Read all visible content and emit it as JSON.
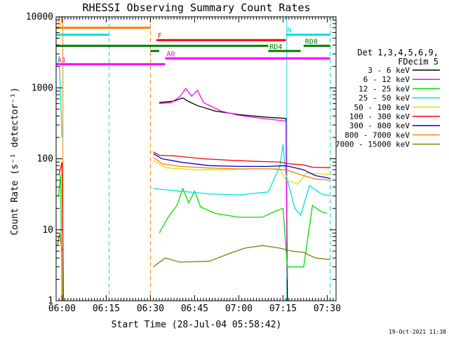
{
  "chart_data": {
    "type": "line",
    "title": "RHESSI Observing Summary Count Rates",
    "xlabel": "Start Time (28-Jul-04 05:58:42)",
    "ylabel": "Count Rate (s⁻¹ detector⁻¹)",
    "yscale": "log",
    "ylim": [
      1,
      10000
    ],
    "xlim_minutes": [
      -2,
      39
    ],
    "x_ticks": [
      {
        "m": 0,
        "label": "06:00"
      },
      {
        "m": 15,
        "label": "06:15"
      },
      {
        "m": 30,
        "label": "06:30"
      },
      {
        "m": 45,
        "label": "06:45"
      },
      {
        "m": 60,
        "label": "07:00"
      },
      {
        "m": 75,
        "label": "07:15"
      },
      {
        "m": 90,
        "label": "07:30"
      }
    ],
    "y_ticks": [
      {
        "v": 1,
        "label": "1"
      },
      {
        "v": 10,
        "label": "10"
      },
      {
        "v": 100,
        "label": "100"
      },
      {
        "v": 1000,
        "label": "1000"
      },
      {
        "v": 10000,
        "label": "10000"
      }
    ],
    "legend_header": [
      "Det 1,3,4,5,6,9,",
      "FDecim 5"
    ],
    "series": [
      {
        "name": "3 - 6 keV",
        "color": "#000000",
        "points": [
          [
            33,
            620
          ],
          [
            38,
            650
          ],
          [
            41,
            720
          ],
          [
            43,
            640
          ],
          [
            46,
            560
          ],
          [
            52,
            470
          ],
          [
            60,
            420
          ],
          [
            68,
            390
          ],
          [
            76,
            370
          ],
          [
            76.5,
            1
          ]
        ]
      },
      {
        "name": "6 - 12 keV",
        "color": "#ff00ff",
        "points": [
          [
            33,
            600
          ],
          [
            37,
            620
          ],
          [
            40,
            750
          ],
          [
            42,
            980
          ],
          [
            44,
            760
          ],
          [
            46,
            920
          ],
          [
            48,
            620
          ],
          [
            54,
            470
          ],
          [
            60,
            410
          ],
          [
            68,
            370
          ],
          [
            76,
            340
          ],
          [
            76.5,
            2
          ]
        ]
      },
      {
        "name": "12 - 25 keV",
        "color": "#00e000",
        "points": [
          [
            33,
            9
          ],
          [
            36,
            15
          ],
          [
            39,
            22
          ],
          [
            41,
            38
          ],
          [
            43,
            24
          ],
          [
            45,
            35
          ],
          [
            47,
            21
          ],
          [
            52,
            17
          ],
          [
            60,
            15
          ],
          [
            68,
            15
          ],
          [
            72,
            18
          ],
          [
            75,
            20
          ],
          [
            76.5,
            3
          ],
          [
            82,
            3
          ],
          [
            85,
            22
          ],
          [
            88,
            18
          ],
          [
            90,
            17
          ]
        ]
      },
      {
        "name": "25 - 50 keV",
        "color": "#00e0e0",
        "points": [
          [
            31,
            38
          ],
          [
            40,
            35
          ],
          [
            50,
            32
          ],
          [
            60,
            31
          ],
          [
            70,
            34
          ],
          [
            74,
            80
          ],
          [
            75,
            160
          ],
          [
            76,
            60
          ],
          [
            79,
            20
          ],
          [
            81,
            16
          ],
          [
            84,
            42
          ],
          [
            88,
            32
          ],
          [
            91,
            30
          ]
        ]
      },
      {
        "name": "50 - 100 keV",
        "color": "#e0e000",
        "points": [
          [
            31,
            95
          ],
          [
            35,
            75
          ],
          [
            45,
            70
          ],
          [
            55,
            70
          ],
          [
            65,
            72
          ],
          [
            74,
            72
          ],
          [
            76,
            50
          ],
          [
            80,
            44
          ],
          [
            83,
            63
          ],
          [
            86,
            62
          ],
          [
            91,
            60
          ]
        ]
      },
      {
        "name": "100 - 300 keV",
        "color": "#ff0000",
        "points": [
          [
            31,
            125
          ],
          [
            33,
            112
          ],
          [
            38,
            110
          ],
          [
            48,
            100
          ],
          [
            58,
            95
          ],
          [
            66,
            92
          ],
          [
            74,
            90
          ],
          [
            77,
            85
          ],
          [
            82,
            82
          ],
          [
            85,
            76
          ],
          [
            91,
            75
          ]
        ]
      },
      {
        "name": "300 - 800 keV",
        "color": "#0000c0",
        "points": [
          [
            31,
            118
          ],
          [
            34,
            100
          ],
          [
            40,
            90
          ],
          [
            50,
            80
          ],
          [
            60,
            78
          ],
          [
            70,
            78
          ],
          [
            76,
            80
          ],
          [
            82,
            70
          ],
          [
            86,
            58
          ],
          [
            91,
            53
          ]
        ]
      },
      {
        "name": "800 - 7000 keV",
        "color": "#ff8000",
        "points": [
          [
            31,
            105
          ],
          [
            34,
            85
          ],
          [
            40,
            78
          ],
          [
            50,
            74
          ],
          [
            60,
            72
          ],
          [
            70,
            72
          ],
          [
            76,
            70
          ],
          [
            82,
            58
          ],
          [
            86,
            52
          ],
          [
            91,
            50
          ]
        ]
      },
      {
        "name": "7000 - 15000 keV",
        "color": "#808000",
        "points": [
          [
            31,
            3
          ],
          [
            35,
            4
          ],
          [
            40,
            3.5
          ],
          [
            50,
            3.6
          ],
          [
            56,
            4.5
          ],
          [
            62,
            5.5
          ],
          [
            68,
            6
          ],
          [
            74,
            5.5
          ],
          [
            78,
            5
          ],
          [
            82,
            4.8
          ],
          [
            86,
            4
          ],
          [
            91,
            3.8
          ]
        ]
      }
    ],
    "spike_series": [
      {
        "color": "#ff0000",
        "points": [
          [
            -1,
            60
          ],
          [
            0,
            90
          ],
          [
            0.5,
            1
          ]
        ]
      },
      {
        "color": "#808000",
        "points": [
          [
            -1.5,
            6
          ],
          [
            -0.8,
            9
          ],
          [
            0,
            5
          ]
        ]
      },
      {
        "color": "#00e000",
        "points": [
          [
            -1.2,
            30
          ],
          [
            -0.5,
            60
          ],
          [
            0,
            1
          ]
        ]
      },
      {
        "color": "#00e0e0",
        "points": [
          [
            -1,
            2800
          ],
          [
            -0.6,
            1000
          ],
          [
            0,
            200
          ]
        ]
      }
    ],
    "flag_bars": [
      {
        "label": "S",
        "color": "#ff8000",
        "y": 7000,
        "segments": [
          [
            -2,
            30
          ]
        ]
      },
      {
        "label": "N",
        "color": "#00e0e0",
        "y": 5600,
        "segments": [
          [
            -2,
            16
          ],
          [
            76,
            91
          ]
        ]
      },
      {
        "label": "F",
        "color": "#ff0000",
        "y": 4700,
        "segments": [
          [
            32,
            76
          ]
        ]
      },
      {
        "label": "RD8",
        "color": "#008000",
        "y": 3900,
        "segments": [
          [
            -2,
            70
          ],
          [
            82,
            91
          ]
        ]
      },
      {
        "label": "RD4",
        "color": "#008000",
        "y": 3300,
        "segments": [
          [
            30,
            33
          ],
          [
            70,
            81
          ]
        ]
      },
      {
        "label": "A0",
        "color": "#ff00ff",
        "y": 2600,
        "segments": [
          [
            35,
            91
          ]
        ]
      },
      {
        "label": "A1",
        "color": "#ff00ff",
        "y": 2150,
        "segments": [
          [
            -2,
            35
          ]
        ]
      }
    ],
    "vertical_markers": [
      {
        "m": 0.3,
        "color": "#ff8000",
        "style": "solid"
      },
      {
        "m": 16,
        "color": "#00e0e0",
        "style": "dashed"
      },
      {
        "m": 30,
        "color": "#ff8000",
        "style": "dashed"
      },
      {
        "m": 76.3,
        "color": "#00e0e0",
        "style": "solid"
      },
      {
        "m": 91,
        "color": "#00e0e0",
        "style": "dashed"
      }
    ]
  },
  "footer": {
    "date_stamp": "19-Oct-2021 11:38"
  }
}
